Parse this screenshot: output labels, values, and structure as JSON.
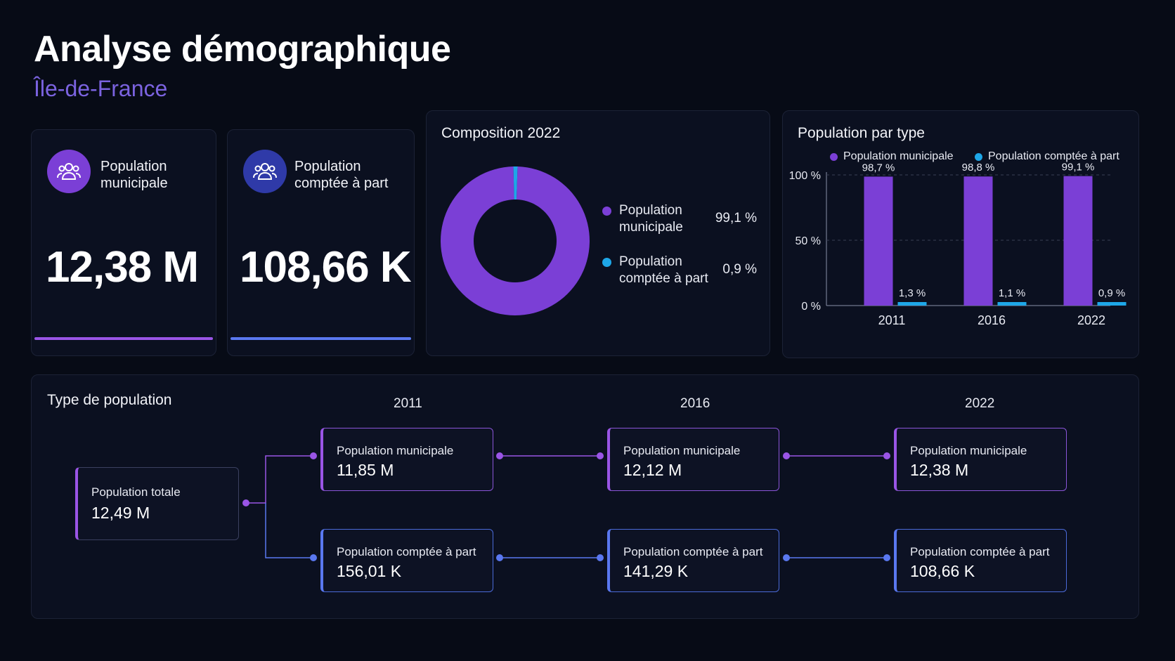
{
  "header": {
    "title": "Analyse démographique",
    "subtitle": "Île-de-France"
  },
  "colors": {
    "municipale": "#7b3fd6",
    "a_part": "#1ea7e8",
    "accent_purple": "#9a55e6",
    "accent_blue": "#5a78f0"
  },
  "kpis": [
    {
      "icon": "users-icon",
      "label": "Population municipale",
      "value": "12,38 M"
    },
    {
      "icon": "users-icon",
      "label": "Population comptée à part",
      "value": "108,66 K"
    }
  ],
  "donut": {
    "title": "Composition 2022",
    "legend": [
      {
        "name": "Population municipale",
        "pct_label": "99,1 %"
      },
      {
        "name": "Population comptée à part",
        "pct_label": "0,9 %"
      }
    ]
  },
  "bars": {
    "title": "Population par type",
    "legend": [
      "Population municipale",
      "Population comptée à part"
    ],
    "yticks": [
      "0 %",
      "50 %",
      "100 %"
    ]
  },
  "flow": {
    "title": "Type de population",
    "years": [
      "2011",
      "2016",
      "2022"
    ],
    "total": {
      "label": "Population totale",
      "value": "12,49 M"
    },
    "municipale": [
      {
        "label": "Population municipale",
        "value": "11,85 M"
      },
      {
        "label": "Population municipale",
        "value": "12,12 M"
      },
      {
        "label": "Population municipale",
        "value": "12,38 M"
      }
    ],
    "a_part": [
      {
        "label": "Population comptée à part",
        "value": "156,01 K"
      },
      {
        "label": "Population comptée à part",
        "value": "141,29 K"
      },
      {
        "label": "Population comptée à part",
        "value": "108,66 K"
      }
    ]
  },
  "chart_data": [
    {
      "type": "pie",
      "title": "Composition 2022",
      "categories": [
        "Population municipale",
        "Population comptée à part"
      ],
      "values": [
        99.1,
        0.9
      ]
    },
    {
      "type": "bar",
      "title": "Population par type",
      "categories": [
        "2011",
        "2016",
        "2022"
      ],
      "series": [
        {
          "name": "Population municipale",
          "values": [
            98.7,
            98.8,
            99.1
          ],
          "labels": [
            "98,7 %",
            "98,8 %",
            "99,1 %"
          ]
        },
        {
          "name": "Population comptée à part",
          "values": [
            1.3,
            1.1,
            0.9
          ],
          "labels": [
            "1,3 %",
            "1,1 %",
            "0,9 %"
          ]
        }
      ],
      "ylim": [
        0,
        100
      ],
      "yticks": [
        0,
        50,
        100
      ],
      "grid": true,
      "legend": "top"
    }
  ]
}
